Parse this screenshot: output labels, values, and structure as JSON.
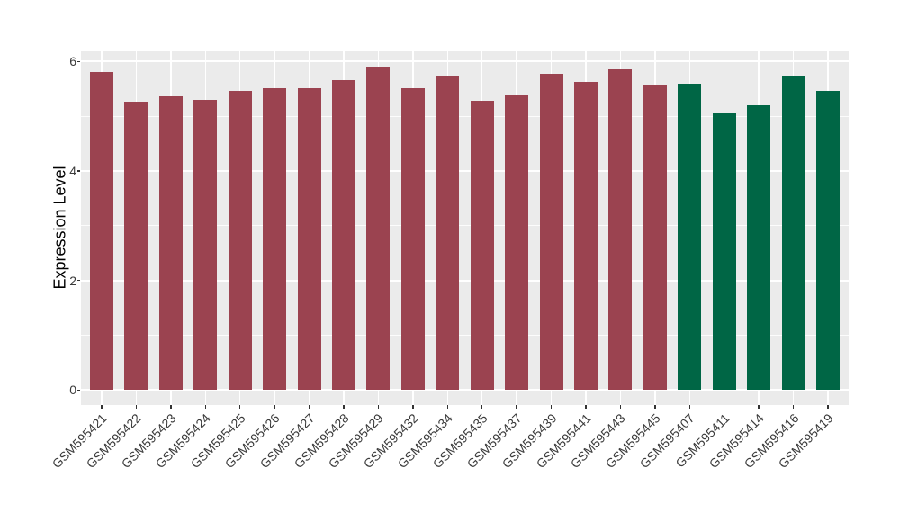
{
  "chart_data": {
    "type": "bar",
    "title": "",
    "xlabel": "",
    "ylabel": "Expression Level",
    "ylim": [
      0,
      6.2
    ],
    "yticks_major": [
      0,
      2,
      4,
      6
    ],
    "yticks_minor": [
      1,
      3,
      5
    ],
    "grid": "on",
    "legend_position": "none",
    "panel_background": "#ebebeb",
    "gridline_color": "#ffffff",
    "group_colors": {
      "red": "#9b4350",
      "green": "#006645"
    },
    "categories": [
      "GSM595421",
      "GSM595422",
      "GSM595423",
      "GSM595424",
      "GSM595425",
      "GSM595426",
      "GSM595427",
      "GSM595428",
      "GSM595429",
      "GSM595432",
      "GSM595434",
      "GSM595435",
      "GSM595437",
      "GSM595439",
      "GSM595441",
      "GSM595443",
      "GSM595445",
      "GSM595407",
      "GSM595411",
      "GSM595414",
      "GSM595416",
      "GSM595419"
    ],
    "values": [
      5.81,
      5.26,
      5.37,
      5.3,
      5.46,
      5.52,
      5.52,
      5.66,
      5.9,
      5.51,
      5.73,
      5.29,
      5.38,
      5.78,
      5.62,
      5.86,
      5.58,
      5.6,
      5.05,
      5.2,
      5.72,
      5.46
    ],
    "groups": [
      "red",
      "red",
      "red",
      "red",
      "red",
      "red",
      "red",
      "red",
      "red",
      "red",
      "red",
      "red",
      "red",
      "red",
      "red",
      "red",
      "red",
      "green",
      "green",
      "green",
      "green",
      "green"
    ]
  }
}
